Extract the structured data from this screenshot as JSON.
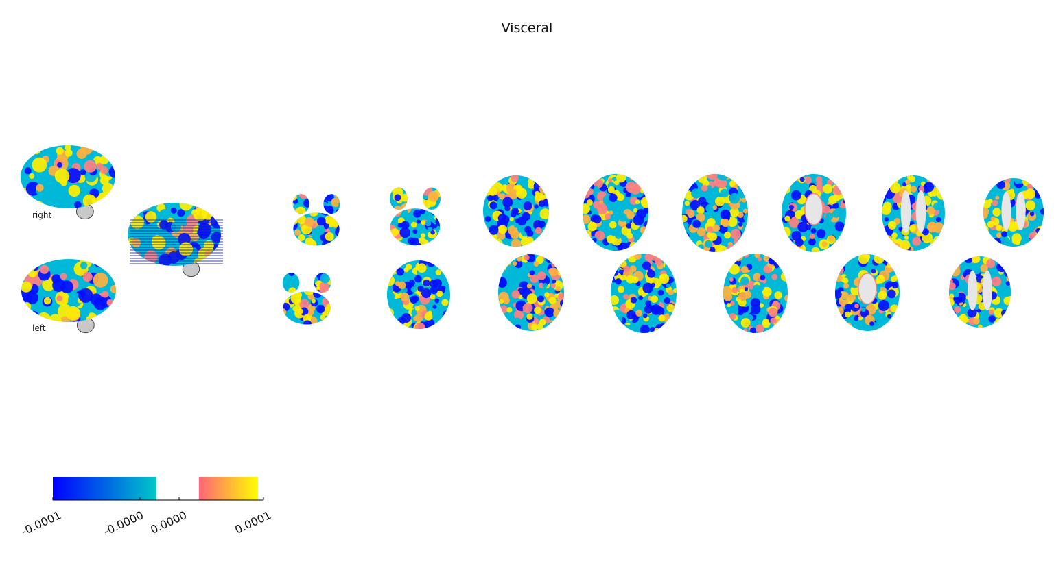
{
  "chart_data": {
    "type": "heatmap",
    "title": "Visceral",
    "surface_labels": {
      "right": "right",
      "left": "left"
    },
    "colormap": {
      "negative": {
        "from": "#0000ff",
        "to": "#00c8c8"
      },
      "positive": {
        "from": "#ff6478",
        "to": "#ffff00"
      },
      "neutral": "#ffffff"
    },
    "colorbar": {
      "range": [
        -0.0001,
        0.0001
      ],
      "ticks": [
        {
          "value": -0.0001,
          "label": "-0.0001"
        },
        {
          "value": -1e-05,
          "label": "-0.0000"
        },
        {
          "value": 1e-05,
          "label": "0.0000"
        },
        {
          "value": 0.0001,
          "label": "0.0001"
        }
      ]
    },
    "axial_slices": {
      "rows": 2,
      "top_row_count": 8,
      "bottom_row_count": 7
    }
  },
  "colors": {
    "blue": "#0010ff",
    "cyan": "#00b8d8",
    "salmon": "#ff8080",
    "orange": "#ffb040",
    "yellow": "#ffee00",
    "gray": "#c8c8c8"
  }
}
